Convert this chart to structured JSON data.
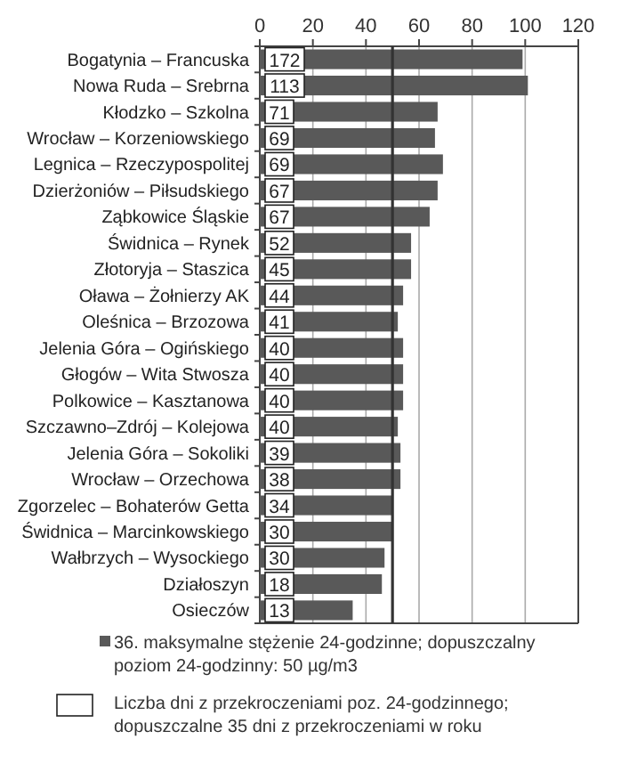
{
  "chart_data": {
    "type": "bar",
    "orientation": "horizontal",
    "categories": [
      "Bogatynia – Francuska",
      "Nowa Ruda – Srebrna",
      "Kłodzko – Szkolna",
      "Wrocław – Korzeniowskiego",
      "Legnica – Rzeczypospolitej",
      "Dzierżoniów – Piłsudskiego",
      "Ząbkowice Śląskie",
      "Świdnica – Rynek",
      "Złotoryja – Staszica",
      "Oława – Żołnierzy AK",
      "Oleśnica – Brzozowa",
      "Jelenia Góra – Ogińskiego",
      "Głogów – Wita Stwosza",
      "Polkowice – Kasztanowa",
      "Szczawno–Zdrój – Kolejowa",
      "Jelenia Góra – Sokoliki",
      "Wrocław – Orzechowa",
      "Zgorzelec – Bohaterów Getta",
      "Świdnica – Marcinkowskiego",
      "Wałbrzych – Wysockiego",
      "Działoszyn",
      "Osieczów"
    ],
    "series": [
      {
        "name": "36. maksymalne stężenie 24-godzinne; dopuszczalny poziom 24-godzinny: 50 µg/m3",
        "color": "#595959",
        "values": [
          99,
          101,
          67,
          66,
          69,
          67,
          64,
          57,
          57,
          54,
          52,
          54,
          54,
          54,
          52,
          53,
          53,
          50,
          50,
          47,
          46,
          35
        ]
      },
      {
        "name": "Liczba dni z przekroczeniami poz. 24-godzinnego; dopuszczalne 35 dni z przekroczeniami w roku",
        "type": "other",
        "color": "#ffffff",
        "values": [
          null,
          null,
          null,
          null,
          null,
          null,
          null,
          null,
          null,
          null,
          null,
          null,
          null,
          null,
          null,
          null,
          null,
          null,
          null,
          null,
          null,
          null
        ],
        "value_labels": [
          "172",
          "113",
          "71",
          "69",
          "69",
          "67",
          "67",
          "52",
          "45",
          "44",
          "41",
          "40",
          "40",
          "40",
          "40",
          "39",
          "38",
          "34",
          "30",
          "30",
          "18",
          "13"
        ]
      }
    ],
    "xlim": [
      0,
      120
    ],
    "xticks": [
      0,
      20,
      40,
      60,
      80,
      100,
      120
    ],
    "grid": "x",
    "legend": "bottom",
    "ref_lines": [
      {
        "axis": "x",
        "value": 50,
        "color": "#333333"
      }
    ]
  }
}
